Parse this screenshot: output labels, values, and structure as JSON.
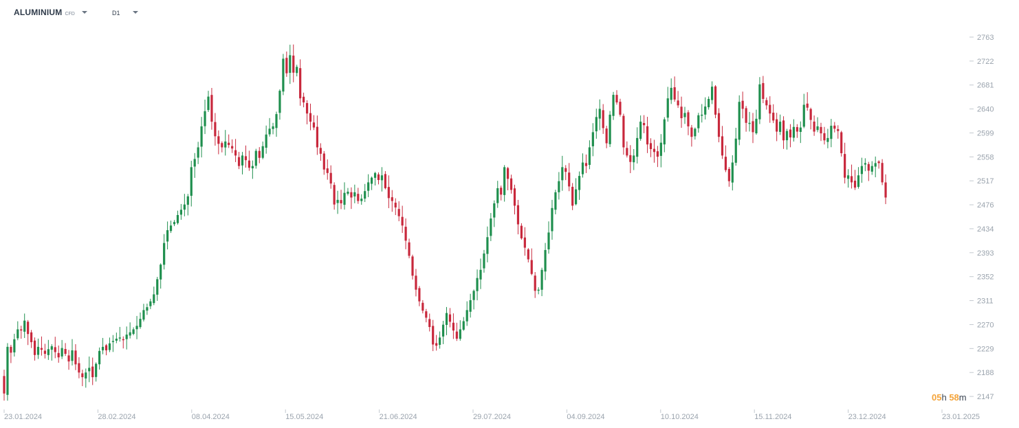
{
  "header": {
    "symbol": "ALUMINIUM",
    "instrument_type": "CFD",
    "timeframe": "D1",
    "symbol_dropdown_icon": "caret-down-icon",
    "timeframe_dropdown_icon": "caret-down-icon"
  },
  "countdown": {
    "hours": "05",
    "hours_unit": "h",
    "minutes": "58",
    "minutes_unit": "m"
  },
  "colors": {
    "up": "#1f8f4e",
    "down": "#c8283c",
    "axis_text": "#9aa3ad",
    "countdown": "#f4a43a"
  },
  "chart_data": {
    "type": "candlestick",
    "title": "",
    "xlabel": "",
    "ylabel": "",
    "ylim": [
      2130,
      2790
    ],
    "y_ticks": [
      "2763",
      "2722",
      "2681",
      "2640",
      "2599",
      "2558",
      "2517",
      "2476",
      "2434",
      "2393",
      "2352",
      "2311",
      "2270",
      "2229",
      "2188",
      "2147"
    ],
    "x_ticks": [
      "23.01.2024",
      "28.02.2024",
      "08.04.2024",
      "15.05.2024",
      "21.06.2024",
      "29.07.2024",
      "04.09.2024",
      "10.10.2024",
      "15.11.2024",
      "23.12.2024",
      "23.01.2025"
    ],
    "x_start": "2024-01-23",
    "x_end": "2025-01-23",
    "grid": false,
    "candles_close": [
      2152,
      2232,
      2222,
      2245,
      2262,
      2260,
      2277,
      2254,
      2240,
      2218,
      2232,
      2227,
      2220,
      2228,
      2233,
      2223,
      2214,
      2230,
      2220,
      2207,
      2226,
      2202,
      2188,
      2180,
      2188,
      2196,
      2180,
      2203,
      2225,
      2232,
      2226,
      2238,
      2242,
      2246,
      2248,
      2244,
      2253,
      2257,
      2262,
      2268,
      2280,
      2295,
      2300,
      2310,
      2322,
      2348,
      2373,
      2410,
      2432,
      2440,
      2446,
      2458,
      2467,
      2476,
      2490,
      2540,
      2554,
      2574,
      2610,
      2636,
      2661,
      2618,
      2593,
      2580,
      2574,
      2584,
      2578,
      2572,
      2560,
      2542,
      2560,
      2552,
      2539,
      2542,
      2568,
      2556,
      2576,
      2596,
      2606,
      2610,
      2631,
      2671,
      2726,
      2701,
      2732,
      2702,
      2712,
      2658,
      2651,
      2632,
      2618,
      2608,
      2574,
      2563,
      2536,
      2530,
      2512,
      2476,
      2484,
      2478,
      2496,
      2498,
      2488,
      2497,
      2482,
      2486,
      2499,
      2514,
      2522,
      2530,
      2518,
      2526,
      2504,
      2487,
      2482,
      2471,
      2456,
      2440,
      2414,
      2388,
      2354,
      2330,
      2310,
      2294,
      2282,
      2266,
      2236,
      2234,
      2248,
      2270,
      2290,
      2275,
      2260,
      2246,
      2262,
      2276,
      2295,
      2312,
      2328,
      2350,
      2364,
      2392,
      2420,
      2452,
      2478,
      2504,
      2493,
      2540,
      2520,
      2501,
      2474,
      2442,
      2418,
      2402,
      2382,
      2357,
      2328,
      2330,
      2364,
      2398,
      2428,
      2470,
      2497,
      2516,
      2540,
      2532,
      2507,
      2474,
      2502,
      2525,
      2548,
      2542,
      2574,
      2600,
      2626,
      2640,
      2607,
      2581,
      2630,
      2664,
      2651,
      2630,
      2574,
      2560,
      2549,
      2560,
      2590,
      2618,
      2612,
      2579,
      2571,
      2566,
      2558,
      2582,
      2622,
      2658,
      2676,
      2656,
      2646,
      2624,
      2633,
      2610,
      2592,
      2606,
      2629,
      2630,
      2644,
      2657,
      2678,
      2630,
      2592,
      2560,
      2535,
      2516,
      2548,
      2589,
      2652,
      2640,
      2616,
      2616,
      2600,
      2623,
      2682,
      2657,
      2646,
      2632,
      2620,
      2601,
      2618,
      2586,
      2602,
      2591,
      2609,
      2601,
      2608,
      2647,
      2642,
      2621,
      2601,
      2610,
      2598,
      2586,
      2590,
      2611,
      2606,
      2602,
      2564,
      2522,
      2526,
      2514,
      2505,
      2526,
      2542,
      2547,
      2534,
      2542,
      2547,
      2547,
      2514,
      2488
    ]
  }
}
